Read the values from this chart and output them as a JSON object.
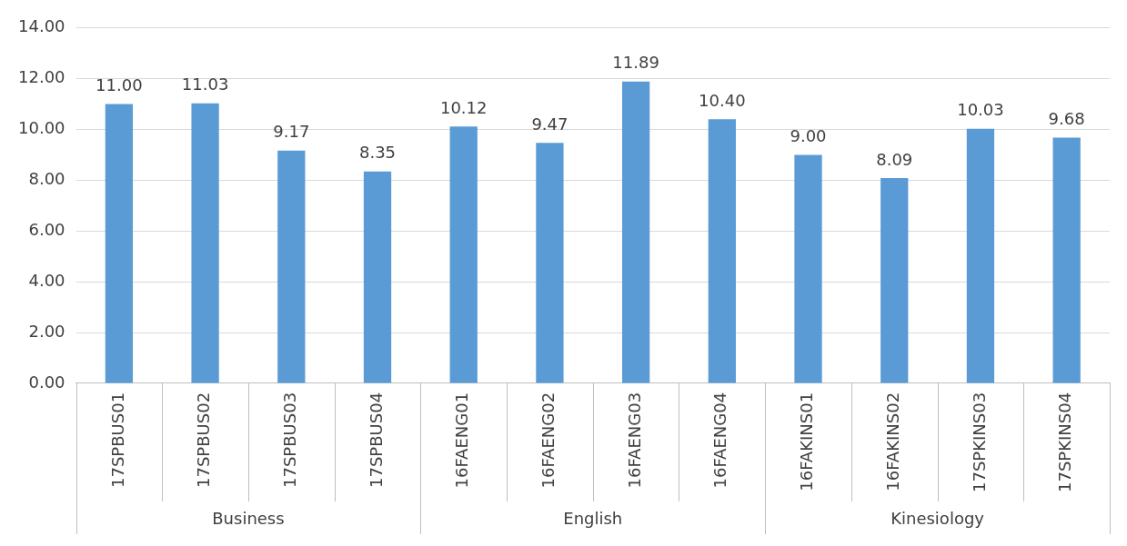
{
  "chart_data": {
    "type": "bar",
    "categories": [
      "17SPBUS01",
      "17SPBUS02",
      "17SPBUS03",
      "17SPBUS04",
      "16FAENG01",
      "16FAENG02",
      "16FAENG03",
      "16FAENG04",
      "16FAKINS01",
      "16FAKINS02",
      "17SPKINS03",
      "17SPKINS04"
    ],
    "values": [
      11.0,
      11.03,
      9.17,
      8.35,
      10.12,
      9.47,
      11.89,
      10.4,
      9.0,
      8.09,
      10.03,
      9.68
    ],
    "value_labels": [
      "11.00",
      "11.03",
      "9.17",
      "8.35",
      "10.12",
      "9.47",
      "11.89",
      "10.40",
      "9.00",
      "8.09",
      "10.03",
      "9.68"
    ],
    "color": "#5b9bd5",
    "ylim": [
      0,
      14
    ],
    "yticks": [
      {
        "value": 0,
        "label": "0.00"
      },
      {
        "value": 2,
        "label": "2.00"
      },
      {
        "value": 4,
        "label": "4.00"
      },
      {
        "value": 6,
        "label": "6.00"
      },
      {
        "value": 8,
        "label": "8.00"
      },
      {
        "value": 10,
        "label": "10.00"
      },
      {
        "value": 12,
        "label": "12.00"
      },
      {
        "value": 14,
        "label": "14.00"
      }
    ],
    "grid": "y",
    "annotations": [
      "Business",
      "English",
      "Kinesiology"
    ]
  }
}
